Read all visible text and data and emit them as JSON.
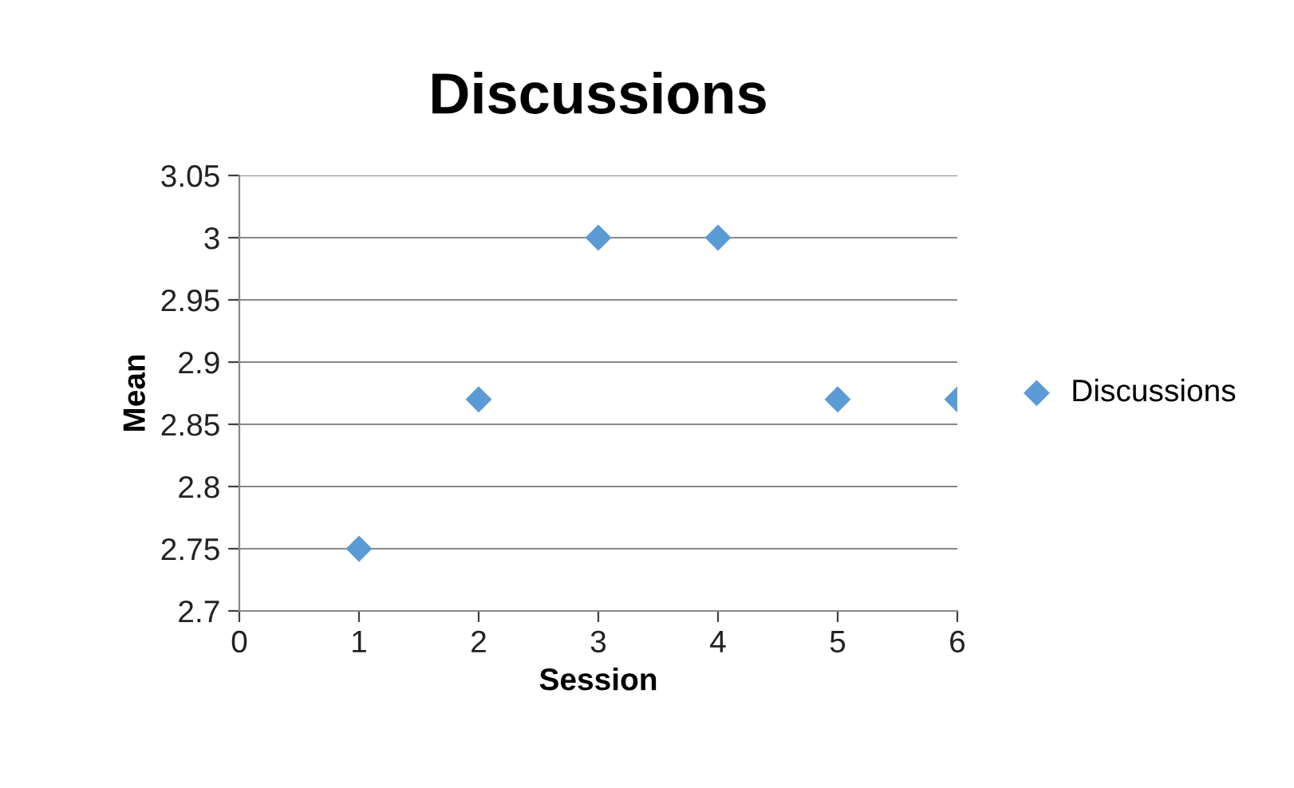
{
  "chart_data": {
    "type": "scatter",
    "title": "Discussions",
    "xlabel": "Session",
    "ylabel": "Mean",
    "x": [
      1,
      2,
      3,
      4,
      5,
      6
    ],
    "series": [
      {
        "name": "Discussions",
        "color": "#5b9bd5",
        "values": [
          2.75,
          2.87,
          3,
          3,
          2.87,
          2.87
        ]
      }
    ],
    "xlim": [
      0,
      6
    ],
    "xticks": [
      0,
      1,
      2,
      3,
      4,
      5,
      6
    ],
    "ylim": [
      2.7,
      3.05
    ],
    "yticks": [
      2.7,
      2.75,
      2.8,
      2.85,
      2.9,
      2.95,
      3,
      3.05
    ],
    "grid": "y",
    "legend": "right",
    "marker": "diamond"
  }
}
